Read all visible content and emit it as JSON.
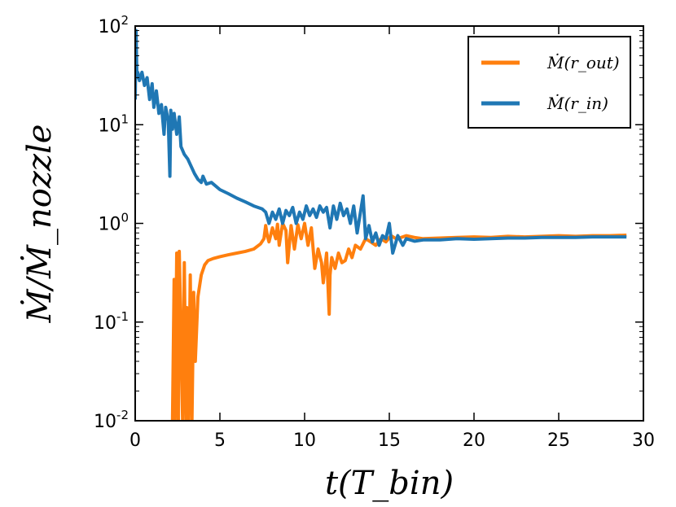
{
  "chart_data": {
    "type": "line",
    "title": "",
    "xlabel": "t(T_bin)",
    "ylabel": "Ṁ/Ṁ_nozzle",
    "xlim": [
      0,
      30
    ],
    "ylim": [
      0.01,
      100
    ],
    "yscale": "log",
    "grid": false,
    "legend_position": "top-right",
    "x_ticks": [
      0,
      5,
      10,
      15,
      20,
      25,
      30
    ],
    "x_tick_labels": [
      "0",
      "5",
      "10",
      "15",
      "20",
      "25",
      "30"
    ],
    "y_ticks": [
      0.01,
      0.1,
      1,
      10,
      100
    ],
    "y_tick_labels": [
      {
        "base": "10",
        "exp": "-2"
      },
      {
        "base": "10",
        "exp": "-1"
      },
      {
        "base": "10",
        "exp": "0"
      },
      {
        "base": "10",
        "exp": "1"
      },
      {
        "base": "10",
        "exp": "2"
      }
    ],
    "series": [
      {
        "name": "Ṁ(r_out)",
        "color": "#ff7f0e",
        "x": [
          2.2,
          2.3,
          2.35,
          2.45,
          2.55,
          2.6,
          2.7,
          2.8,
          2.9,
          3.0,
          3.05,
          3.15,
          3.25,
          3.35,
          3.45,
          3.55,
          3.7,
          3.9,
          4.1,
          4.3,
          4.6,
          5.0,
          5.5,
          6.0,
          6.5,
          7.0,
          7.4,
          7.6,
          7.7,
          7.8,
          7.9,
          8.1,
          8.3,
          8.4,
          8.5,
          8.7,
          8.9,
          9.0,
          9.2,
          9.4,
          9.6,
          9.8,
          10.0,
          10.2,
          10.4,
          10.6,
          10.8,
          11.0,
          11.1,
          11.3,
          11.45,
          11.5,
          11.6,
          11.8,
          12.0,
          12.2,
          12.4,
          12.6,
          12.8,
          13.0,
          13.3,
          13.6,
          13.9,
          14.2,
          14.5,
          14.8,
          15.1,
          15.4,
          15.7,
          16.0,
          16.5,
          17.0,
          18.0,
          19.0,
          20.0,
          21.0,
          22.0,
          23.0,
          24.0,
          25.0,
          26.0,
          27.0,
          28.0,
          29.0
        ],
        "values": [
          0.01,
          0.27,
          0.01,
          0.5,
          0.01,
          0.52,
          0.08,
          0.01,
          0.4,
          0.01,
          0.14,
          0.01,
          0.3,
          0.01,
          0.2,
          0.04,
          0.18,
          0.3,
          0.38,
          0.42,
          0.44,
          0.46,
          0.48,
          0.5,
          0.52,
          0.55,
          0.62,
          0.7,
          0.95,
          0.75,
          0.65,
          0.9,
          0.7,
          0.98,
          0.6,
          1.0,
          0.85,
          0.4,
          0.95,
          0.55,
          0.97,
          0.7,
          1.0,
          0.6,
          0.9,
          0.35,
          0.55,
          0.4,
          0.25,
          0.5,
          0.12,
          0.3,
          0.45,
          0.35,
          0.5,
          0.4,
          0.42,
          0.55,
          0.45,
          0.6,
          0.55,
          0.7,
          0.65,
          0.6,
          0.7,
          0.65,
          0.75,
          0.7,
          0.72,
          0.75,
          0.72,
          0.7,
          0.71,
          0.72,
          0.73,
          0.72,
          0.74,
          0.73,
          0.74,
          0.75,
          0.74,
          0.75,
          0.75,
          0.76
        ]
      },
      {
        "name": "Ṁ(r_in)",
        "color": "#1f77b4",
        "x": [
          0.0,
          0.05,
          0.1,
          0.15,
          0.25,
          0.4,
          0.55,
          0.7,
          0.85,
          1.0,
          1.1,
          1.25,
          1.4,
          1.55,
          1.7,
          1.8,
          1.95,
          2.05,
          2.1,
          2.2,
          2.3,
          2.45,
          2.6,
          2.7,
          2.9,
          3.1,
          3.3,
          3.5,
          3.7,
          3.9,
          4.0,
          4.2,
          4.5,
          5.0,
          5.5,
          6.0,
          6.5,
          7.0,
          7.5,
          7.7,
          7.9,
          8.1,
          8.3,
          8.5,
          8.7,
          8.9,
          9.1,
          9.3,
          9.5,
          9.7,
          9.9,
          10.1,
          10.3,
          10.5,
          10.7,
          10.9,
          11.1,
          11.3,
          11.5,
          11.7,
          11.9,
          12.1,
          12.3,
          12.5,
          12.7,
          12.9,
          13.1,
          13.3,
          13.45,
          13.6,
          13.8,
          14.0,
          14.2,
          14.4,
          14.6,
          14.8,
          15.0,
          15.2,
          15.5,
          15.8,
          16.0,
          16.5,
          17.0,
          18.0,
          19.0,
          20.0,
          21.0,
          22.0,
          23.0,
          24.0,
          25.0,
          26.0,
          27.0,
          28.0,
          29.0
        ],
        "values": [
          18.0,
          90.0,
          30.0,
          34.0,
          28.0,
          34.0,
          25.0,
          30.0,
          18.0,
          26.0,
          15.0,
          22.0,
          13.0,
          16.0,
          8.0,
          15.0,
          11.0,
          3.0,
          14.0,
          9.0,
          13.0,
          8.0,
          12.0,
          6.0,
          5.0,
          4.5,
          3.8,
          3.2,
          2.8,
          2.6,
          3.0,
          2.5,
          2.6,
          2.2,
          2.0,
          1.8,
          1.65,
          1.5,
          1.4,
          1.3,
          1.0,
          1.3,
          1.1,
          1.4,
          1.0,
          1.35,
          1.2,
          1.45,
          1.0,
          1.3,
          1.1,
          1.5,
          1.2,
          1.4,
          1.15,
          1.5,
          1.3,
          1.45,
          0.9,
          1.5,
          1.1,
          1.6,
          1.2,
          1.4,
          1.0,
          1.5,
          0.8,
          1.3,
          1.9,
          0.7,
          0.95,
          0.65,
          0.8,
          0.6,
          0.75,
          0.7,
          1.0,
          0.5,
          0.75,
          0.6,
          0.7,
          0.66,
          0.68,
          0.68,
          0.7,
          0.69,
          0.7,
          0.71,
          0.71,
          0.72,
          0.72,
          0.72,
          0.73,
          0.73,
          0.73
        ]
      }
    ]
  }
}
